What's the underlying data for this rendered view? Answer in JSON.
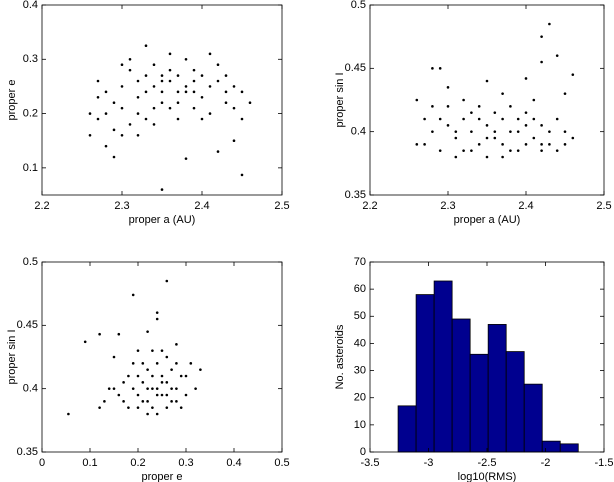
{
  "chart_data": [
    {
      "type": "scatter",
      "xlabel": "proper a (AU)",
      "ylabel": "proper e",
      "color": "#000000",
      "xlim": [
        2.2,
        2.5
      ],
      "xticks": [
        2.2,
        2.3,
        2.4,
        2.5
      ],
      "ylim": [
        0.05,
        0.4
      ],
      "yticks": [
        0.1,
        0.2,
        0.3,
        0.4
      ],
      "x": [
        2.27,
        2.28,
        2.26,
        2.29,
        2.3,
        2.31,
        2.32,
        2.33,
        2.34,
        2.35,
        2.36,
        2.37,
        2.38,
        2.39,
        2.4,
        2.41,
        2.42,
        2.43,
        2.44,
        2.45,
        2.3,
        2.31,
        2.32,
        2.33,
        2.34,
        2.35,
        2.36,
        2.37,
        2.38,
        2.39,
        2.4,
        2.28,
        2.27,
        2.29,
        2.3,
        2.32,
        2.34,
        2.35,
        2.36,
        2.38,
        2.41,
        2.42,
        2.43,
        2.44,
        2.45,
        2.28,
        2.3,
        2.33,
        2.35,
        2.37,
        2.39,
        2.4,
        2.36,
        2.33,
        2.31,
        2.29,
        2.35,
        2.45,
        2.38,
        2.42,
        2.46,
        2.44,
        2.32,
        2.34,
        2.37,
        2.41,
        2.26,
        2.27,
        2.39,
        2.43
      ],
      "values": [
        0.26,
        0.2,
        0.16,
        0.22,
        0.25,
        0.18,
        0.23,
        0.27,
        0.21,
        0.24,
        0.26,
        0.22,
        0.25,
        0.28,
        0.23,
        0.2,
        0.26,
        0.22,
        0.25,
        0.24,
        0.29,
        0.3,
        0.2,
        0.19,
        0.25,
        0.22,
        0.28,
        0.19,
        0.24,
        0.21,
        0.27,
        0.24,
        0.19,
        0.17,
        0.21,
        0.26,
        0.29,
        0.27,
        0.21,
        0.3,
        0.25,
        0.29,
        0.27,
        0.21,
        0.19,
        0.14,
        0.16,
        0.24,
        0.26,
        0.24,
        0.24,
        0.19,
        0.31,
        0.325,
        0.28,
        0.12,
        0.06,
        0.087,
        0.117,
        0.13,
        0.22,
        0.15,
        0.16,
        0.18,
        0.27,
        0.31,
        0.2,
        0.23,
        0.26,
        0.24
      ]
    },
    {
      "type": "scatter",
      "xlabel": "proper a (AU)",
      "ylabel": "proper sin I",
      "color": "#000000",
      "xlim": [
        2.2,
        2.5
      ],
      "xticks": [
        2.2,
        2.3,
        2.4,
        2.5
      ],
      "ylim": [
        0.35,
        0.5
      ],
      "yticks": [
        0.35,
        0.4,
        0.45,
        0.5
      ],
      "x": [
        2.27,
        2.26,
        2.28,
        2.29,
        2.3,
        2.31,
        2.32,
        2.33,
        2.34,
        2.35,
        2.36,
        2.37,
        2.38,
        2.39,
        2.4,
        2.41,
        2.42,
        2.43,
        2.44,
        2.45,
        2.46,
        2.3,
        2.32,
        2.33,
        2.34,
        2.35,
        2.36,
        2.37,
        2.38,
        2.39,
        2.4,
        2.41,
        2.42,
        2.43,
        2.44,
        2.28,
        2.27,
        2.29,
        2.31,
        2.33,
        2.35,
        2.37,
        2.39,
        2.34,
        2.36,
        2.38,
        2.4,
        2.42,
        2.45,
        2.31,
        2.43,
        2.42,
        2.44,
        2.28,
        2.29,
        2.46,
        2.4,
        2.35,
        2.42,
        2.3,
        2.37,
        2.45,
        2.26,
        2.32,
        2.41
      ],
      "values": [
        0.41,
        0.39,
        0.4,
        0.385,
        0.405,
        0.395,
        0.41,
        0.4,
        0.39,
        0.405,
        0.395,
        0.41,
        0.4,
        0.385,
        0.405,
        0.395,
        0.39,
        0.4,
        0.385,
        0.4,
        0.395,
        0.42,
        0.385,
        0.415,
        0.41,
        0.395,
        0.415,
        0.39,
        0.42,
        0.41,
        0.39,
        0.41,
        0.405,
        0.39,
        0.41,
        0.42,
        0.39,
        0.41,
        0.38,
        0.385,
        0.38,
        0.38,
        0.4,
        0.42,
        0.4,
        0.385,
        0.415,
        0.385,
        0.39,
        0.4,
        0.485,
        0.475,
        0.46,
        0.45,
        0.45,
        0.445,
        0.442,
        0.44,
        0.455,
        0.435,
        0.43,
        0.43,
        0.425,
        0.425,
        0.425
      ]
    },
    {
      "type": "scatter",
      "xlabel": "proper e",
      "ylabel": "proper sin I",
      "color": "#000000",
      "xlim": [
        0,
        0.5
      ],
      "xticks": [
        0,
        0.1,
        0.2,
        0.3,
        0.4,
        0.5
      ],
      "ylim": [
        0.35,
        0.5
      ],
      "yticks": [
        0.35,
        0.4,
        0.45,
        0.5
      ],
      "x": [
        0.15,
        0.17,
        0.18,
        0.19,
        0.2,
        0.21,
        0.22,
        0.23,
        0.24,
        0.25,
        0.26,
        0.27,
        0.28,
        0.29,
        0.3,
        0.32,
        0.2,
        0.22,
        0.23,
        0.24,
        0.25,
        0.26,
        0.27,
        0.28,
        0.21,
        0.22,
        0.23,
        0.24,
        0.25,
        0.26,
        0.24,
        0.22,
        0.18,
        0.16,
        0.13,
        0.12,
        0.14,
        0.19,
        0.21,
        0.26,
        0.3,
        0.31,
        0.29,
        0.27,
        0.23,
        0.25,
        0.2,
        0.28,
        0.17,
        0.33,
        0.055,
        0.26,
        0.19,
        0.12,
        0.09,
        0.16,
        0.24,
        0.24,
        0.22,
        0.15,
        0.28,
        0.2
      ],
      "values": [
        0.4,
        0.39,
        0.41,
        0.4,
        0.395,
        0.405,
        0.39,
        0.41,
        0.4,
        0.395,
        0.405,
        0.39,
        0.4,
        0.41,
        0.395,
        0.4,
        0.385,
        0.415,
        0.385,
        0.42,
        0.41,
        0.385,
        0.415,
        0.39,
        0.39,
        0.4,
        0.4,
        0.395,
        0.405,
        0.395,
        0.38,
        0.38,
        0.385,
        0.395,
        0.39,
        0.385,
        0.4,
        0.42,
        0.42,
        0.425,
        0.41,
        0.42,
        0.385,
        0.4,
        0.43,
        0.43,
        0.41,
        0.42,
        0.405,
        0.415,
        0.38,
        0.485,
        0.474,
        0.443,
        0.437,
        0.443,
        0.455,
        0.46,
        0.445,
        0.425,
        0.435,
        0.43
      ]
    },
    {
      "type": "histogram",
      "xlabel": "log10(RMS)",
      "ylabel": "No. asteroids",
      "color": "#00008f",
      "xlim": [
        -3.5,
        -1.5
      ],
      "xticks": [
        -3.5,
        -3,
        -2.5,
        -2,
        -1.5
      ],
      "ylim": [
        0,
        70
      ],
      "yticks": [
        0,
        10,
        20,
        30,
        40,
        50,
        60,
        70
      ],
      "bins": [
        -3.26,
        -3.106,
        -2.952,
        -2.798,
        -2.644,
        -2.49,
        -2.336,
        -2.182,
        -2.028,
        -1.874,
        -1.72
      ],
      "values": [
        17,
        58,
        63,
        49,
        36,
        47,
        37,
        25,
        4,
        3
      ]
    }
  ]
}
